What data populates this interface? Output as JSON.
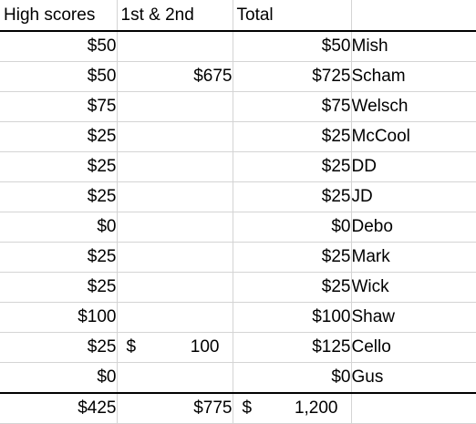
{
  "headers": {
    "high_scores": "High scores",
    "first_second": "1st & 2nd",
    "total": "Total",
    "player": ""
  },
  "rows": [
    {
      "high": "$50",
      "place": "",
      "place_symbol": "",
      "place_amount": "",
      "total": "$50",
      "name": "Mish"
    },
    {
      "high": "$50",
      "place": "$675",
      "place_symbol": "",
      "place_amount": "",
      "total": "$725",
      "name": "Scham"
    },
    {
      "high": "$75",
      "place": "",
      "place_symbol": "",
      "place_amount": "",
      "total": "$75",
      "name": "Welsch"
    },
    {
      "high": "$25",
      "place": "",
      "place_symbol": "",
      "place_amount": "",
      "total": "$25",
      "name": "McCool"
    },
    {
      "high": "$25",
      "place": "",
      "place_symbol": "",
      "place_amount": "",
      "total": "$25",
      "name": "DD"
    },
    {
      "high": "$25",
      "place": "",
      "place_symbol": "",
      "place_amount": "",
      "total": "$25",
      "name": "JD"
    },
    {
      "high": "$0",
      "place": "",
      "place_symbol": "",
      "place_amount": "",
      "total": "$0",
      "name": "Debo"
    },
    {
      "high": "$25",
      "place": "",
      "place_symbol": "",
      "place_amount": "",
      "total": "$25",
      "name": "Mark"
    },
    {
      "high": "$25",
      "place": "",
      "place_symbol": "",
      "place_amount": "",
      "total": "$25",
      "name": "Wick"
    },
    {
      "high": "$100",
      "place": "",
      "place_symbol": "",
      "place_amount": "",
      "total": "$100",
      "name": "Shaw"
    },
    {
      "high": "$25",
      "place": "",
      "place_symbol": "$",
      "place_amount": "100",
      "total": "$125",
      "name": "Cello"
    },
    {
      "high": "$0",
      "place": "",
      "place_symbol": "",
      "place_amount": "",
      "total": "$0",
      "name": "Gus"
    }
  ],
  "totals": {
    "high": "$425",
    "place": "$775",
    "total_symbol": "$",
    "total_amount": "1,200",
    "name": ""
  }
}
